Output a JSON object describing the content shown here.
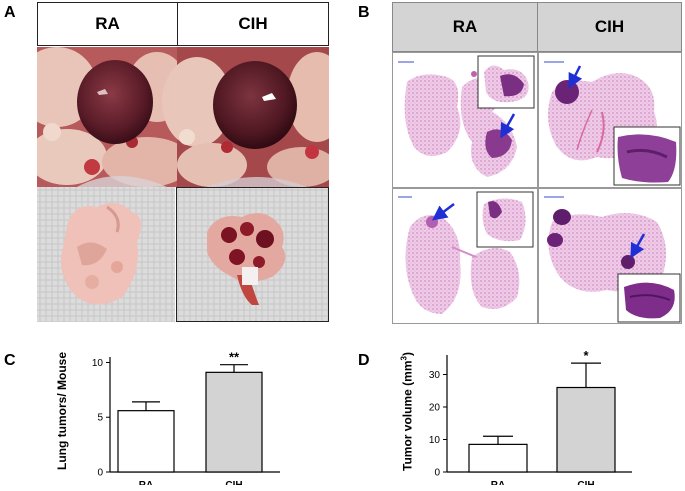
{
  "panels": {
    "a": {
      "letter": "A",
      "headers": [
        "RA",
        "CIH"
      ]
    },
    "b": {
      "letter": "B",
      "headers": [
        "RA",
        "CIH"
      ]
    },
    "c": {
      "letter": "C",
      "ylabel": "Lung tumors/ Mouse"
    },
    "d": {
      "letter": "D",
      "ylabel_main": "Tumor volume (mm",
      "ylabel_sup": "3",
      "ylabel_end": ")"
    }
  },
  "colors": {
    "bar_ra": "#ffffff",
    "bar_cih": "#d3d3d3",
    "arrow": "#1f2fd6",
    "tissue_stain": "#c85bb4",
    "tumor_stain": "#6a2a78"
  },
  "chart_data": [
    {
      "type": "bar",
      "categories": [
        "RA",
        "CIH"
      ],
      "values": [
        5.6,
        9.1
      ],
      "errors": [
        0.8,
        0.7
      ],
      "significance": [
        "",
        "**"
      ],
      "ylim": [
        0,
        10.5
      ],
      "yticks": [
        0,
        5,
        10
      ],
      "ylabel": "Lung tumors/ Mouse",
      "xlabel": ""
    },
    {
      "type": "bar",
      "categories": [
        "RA",
        "CIH"
      ],
      "values": [
        8.5,
        26
      ],
      "errors": [
        2.5,
        7.5
      ],
      "significance": [
        "",
        "*"
      ],
      "ylim": [
        0,
        36
      ],
      "yticks": [
        0,
        10,
        20,
        30
      ],
      "ylabel": "Tumor volume (mm3)",
      "xlabel": ""
    }
  ]
}
